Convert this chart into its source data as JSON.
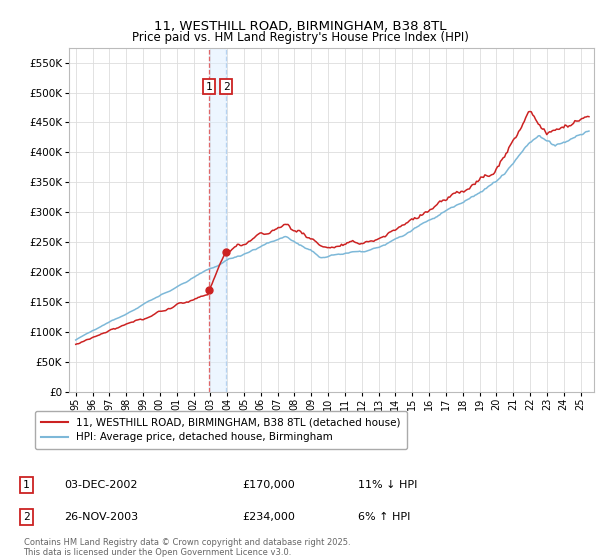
{
  "title": "11, WESTHILL ROAD, BIRMINGHAM, B38 8TL",
  "subtitle": "Price paid vs. HM Land Registry's House Price Index (HPI)",
  "hpi_color": "#7db8d8",
  "price_color": "#cc2222",
  "annot_line_color_red": "#dd4444",
  "annot_line_color_blue": "#aaccee",
  "annot_fill_color": "#ddeeff",
  "bg_color": "#ffffff",
  "grid_color": "#dddddd",
  "legend_entries": [
    "11, WESTHILL ROAD, BIRMINGHAM, B38 8TL (detached house)",
    "HPI: Average price, detached house, Birmingham"
  ],
  "transactions": [
    {
      "num": 1,
      "date": "03-DEC-2002",
      "price": "£170,000",
      "note": "11% ↓ HPI"
    },
    {
      "num": 2,
      "date": "26-NOV-2003",
      "price": "£234,000",
      "note": "6% ↑ HPI"
    }
  ],
  "footnote": "Contains HM Land Registry data © Crown copyright and database right 2025.\nThis data is licensed under the Open Government Licence v3.0.",
  "ylim": [
    0,
    575000
  ],
  "yticks": [
    0,
    50000,
    100000,
    150000,
    200000,
    250000,
    300000,
    350000,
    400000,
    450000,
    500000,
    550000
  ],
  "xstart": 1995,
  "xend": 2025,
  "trans1_year": 2002.92,
  "trans1_price": 170000,
  "trans2_year": 2003.9,
  "trans2_price": 234000
}
